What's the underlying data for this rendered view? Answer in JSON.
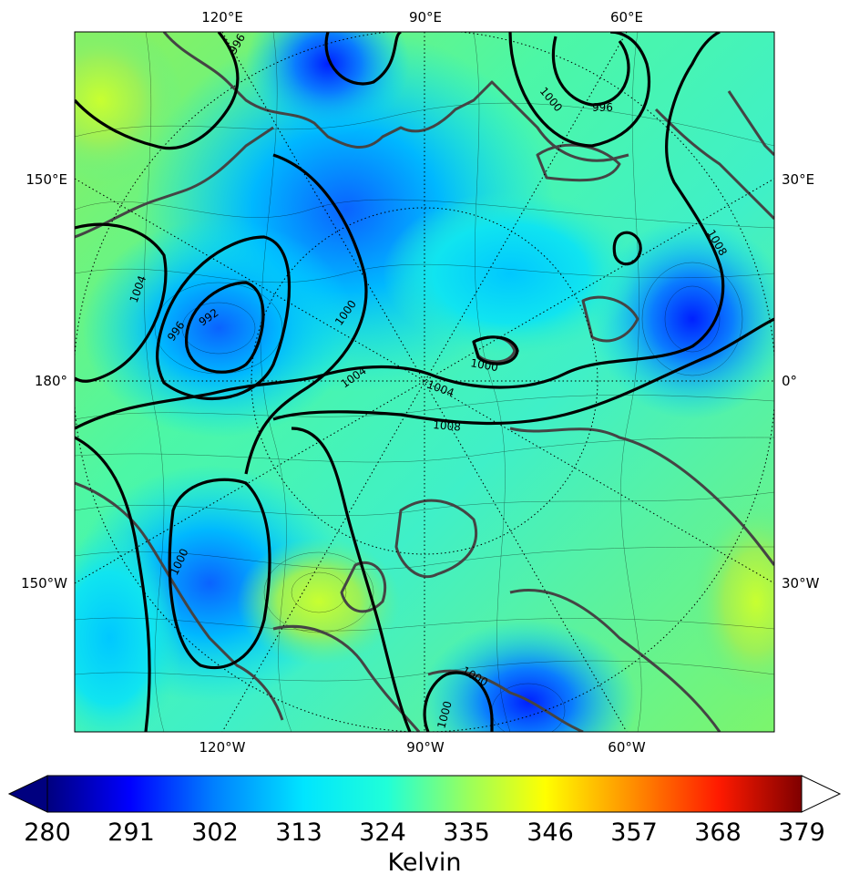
{
  "map": {
    "projection": "polar stereographic (north)",
    "top_longitude_labels": [
      "120°E",
      "90°E",
      "60°E"
    ],
    "bottom_longitude_labels": [
      "120°W",
      "90°W",
      "60°W"
    ],
    "left_longitude_labels": [
      "150°E",
      "180°",
      "150°W"
    ],
    "right_longitude_labels": [
      "30°E",
      "0°",
      "30°W"
    ],
    "filled_field_units": "Kelvin",
    "contour_field": "sea level pressure (isobars)",
    "isobar_labels": [
      "996",
      "1000",
      "996",
      "1004",
      "996",
      "992",
      "1000",
      "1004",
      "1004",
      "1000",
      "1008",
      "1008",
      "1000",
      "1000",
      "1000"
    ]
  },
  "colorbar": {
    "tick_labels": [
      "280",
      "291",
      "302",
      "313",
      "324",
      "335",
      "346",
      "357",
      "368",
      "379"
    ],
    "label": "Kelvin",
    "extend": "both",
    "colormap": "jet",
    "colors": [
      "#00007f",
      "#0000ff",
      "#007fff",
      "#00ffff",
      "#7fff7f",
      "#ffff00",
      "#ff7f00",
      "#ff0000",
      "#7f0000"
    ]
  }
}
